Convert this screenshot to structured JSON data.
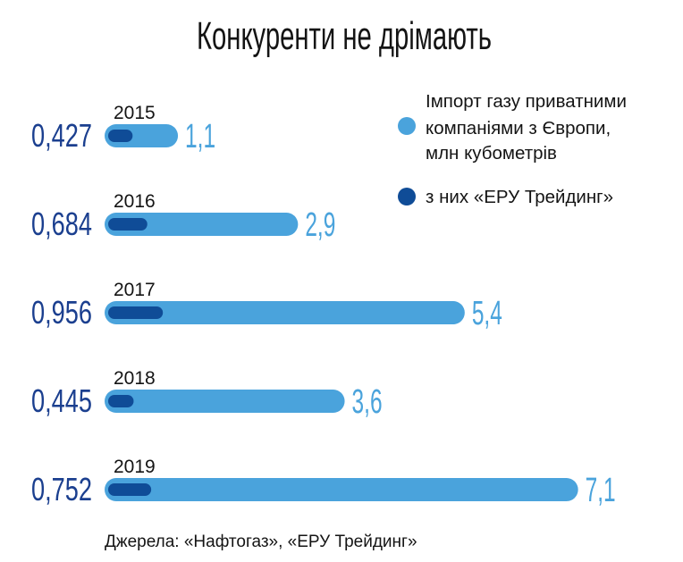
{
  "chart_data": {
    "type": "bar",
    "orientation": "horizontal",
    "title": "Конкуренти не дрімають",
    "categories": [
      "2015",
      "2016",
      "2017",
      "2018",
      "2019"
    ],
    "series": [
      {
        "name": "Імпорт газу приватними компаніями з Європи, млн кубометрів",
        "values": [
          1.1,
          2.9,
          5.4,
          3.6,
          7.1
        ],
        "labels": [
          "1,1",
          "2,9",
          "5,4",
          "3,6",
          "7,1"
        ],
        "color": "#4aa3dc"
      },
      {
        "name": "з них «ЕРУ Трейдинг»",
        "values": [
          0.427,
          0.684,
          0.956,
          0.445,
          0.752
        ],
        "labels": [
          "0,427",
          "0,684",
          "0,956",
          "0,445",
          "0,752"
        ],
        "color": "#0f4c97"
      }
    ],
    "legend": {
      "position": "top-right",
      "items": [
        {
          "lines": [
            "Імпорт газу приватними",
            "компаніями з Європи,",
            "млн кубометрів"
          ],
          "color": "#4aa3dc"
        },
        {
          "lines": [
            "з них «ЕРУ Трейдинг»"
          ],
          "color": "#0f4c97"
        }
      ]
    },
    "source": "Джерела: «Нафтогаз», «ЕРУ Трейдинг»",
    "grid": false
  },
  "colors": {
    "light_bar": "#4aa3dc",
    "dark_bar": "#0f4c97",
    "dark_text": "#1b3f8f",
    "light_text": "#4aa3dc",
    "text": "#141414"
  }
}
